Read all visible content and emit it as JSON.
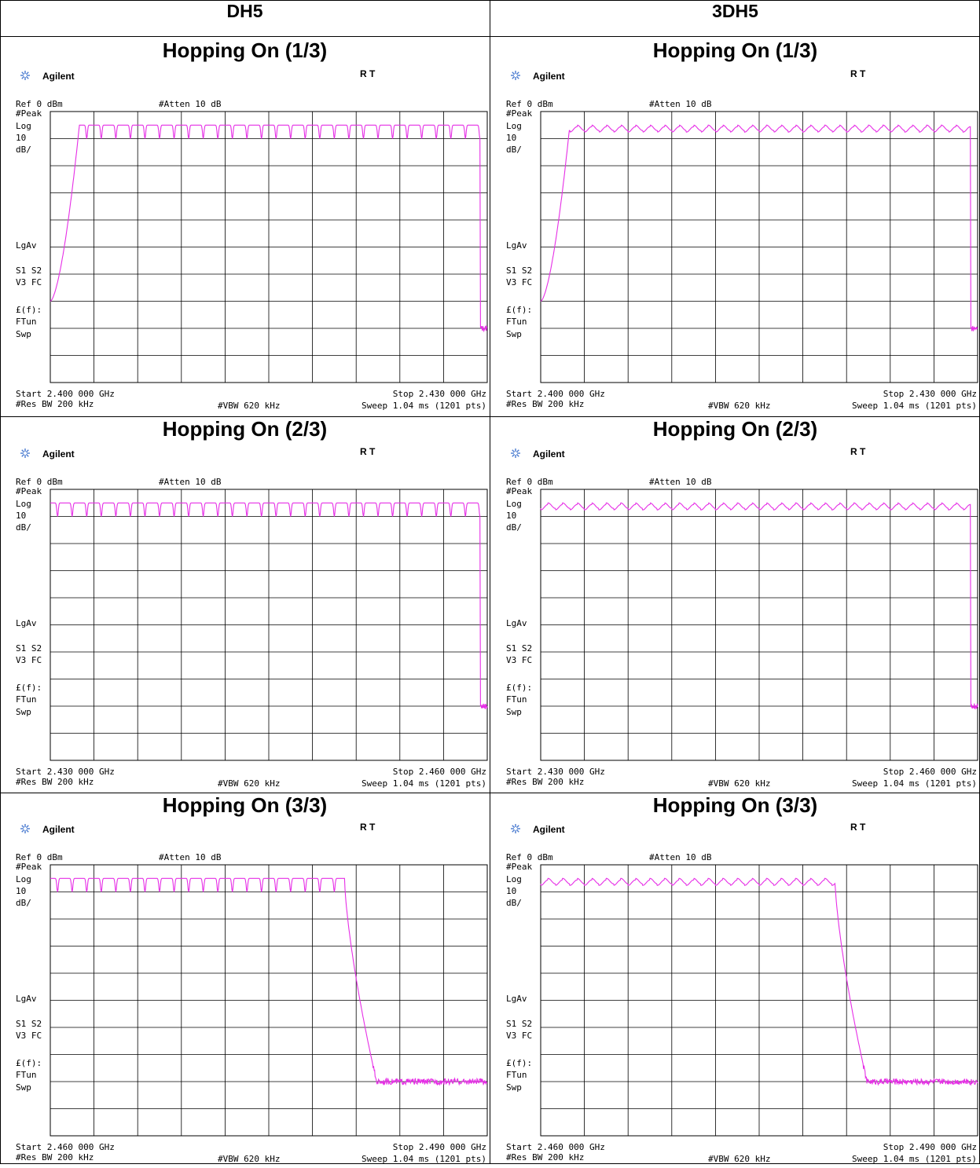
{
  "table": {
    "columns": [
      "DH5",
      "3DH5"
    ],
    "row_titles": [
      "Hopping On (1/3)",
      "Hopping On (2/3)",
      "Hopping On (3/3)"
    ]
  },
  "instrument": {
    "brand": "Agilent",
    "status": "R  T",
    "ref": "Ref 0 dBm",
    "atten": "#Atten 10 dB",
    "peak": "#Peak",
    "log": "Log",
    "scale_num": "10",
    "scale_unit": "dB/",
    "lgav": "LgAv",
    "s1s2": "S1  S2",
    "v3fc": "V3  FC",
    "ef": "£(f):",
    "ftun": "FTun",
    "swp": "Swp",
    "res_bw": "#Res BW 200 kHz",
    "vbw": "#VBW 620 kHz",
    "sweep": "Sweep 1.04 ms (1201 pts)"
  },
  "colors": {
    "trace": "#e62ee6",
    "grid": "#000000",
    "background": "#ffffff"
  },
  "chart_data": [
    {
      "type": "line",
      "column": "DH5",
      "title": "Hopping On (1/3)",
      "start": "Start 2.400 000 GHz",
      "stop": "Stop 2.430 000 GHz",
      "x_range_ghz": [
        2.4,
        2.43
      ],
      "ylim_dbm": [
        -100,
        0
      ],
      "channels_mhz": [
        2402,
        2403,
        2404,
        2405,
        2406,
        2407,
        2408,
        2409,
        2410,
        2411,
        2412,
        2413,
        2414,
        2415,
        2416,
        2417,
        2418,
        2419,
        2420,
        2421,
        2422,
        2423,
        2424,
        2425,
        2426,
        2427,
        2428,
        2429
      ],
      "peak_dbm": -5,
      "dip_dbm": -10,
      "noise_dbm": -80,
      "edge": "rising",
      "edge_ghz": 2.4015
    },
    {
      "type": "line",
      "column": "3DH5",
      "title": "Hopping On (1/3)",
      "start": "Start 2.400 000 GHz",
      "stop": "Stop 2.430 000 GHz",
      "x_range_ghz": [
        2.4,
        2.43
      ],
      "ylim_dbm": [
        -100,
        0
      ],
      "channels_mhz": [
        2402,
        2403,
        2404,
        2405,
        2406,
        2407,
        2408,
        2409,
        2410,
        2411,
        2412,
        2413,
        2414,
        2415,
        2416,
        2417,
        2418,
        2419,
        2420,
        2421,
        2422,
        2423,
        2424,
        2425,
        2426,
        2427,
        2428,
        2429
      ],
      "peak_dbm": -5,
      "dip_dbm": -7,
      "noise_dbm": -80,
      "edge": "rising",
      "edge_ghz": 2.4015
    },
    {
      "type": "line",
      "column": "DH5",
      "title": "Hopping On (2/3)",
      "start": "Start 2.430 000 GHz",
      "stop": "Stop 2.460 000 GHz",
      "x_range_ghz": [
        2.43,
        2.46
      ],
      "ylim_dbm": [
        -100,
        0
      ],
      "channels_mhz": [
        2430,
        2431,
        2432,
        2433,
        2434,
        2435,
        2436,
        2437,
        2438,
        2439,
        2440,
        2441,
        2442,
        2443,
        2444,
        2445,
        2446,
        2447,
        2448,
        2449,
        2450,
        2451,
        2452,
        2453,
        2454,
        2455,
        2456,
        2457,
        2458,
        2459
      ],
      "peak_dbm": -5,
      "dip_dbm": -10,
      "noise_dbm": -80,
      "edge": "none",
      "edge_ghz": null
    },
    {
      "type": "line",
      "column": "3DH5",
      "title": "Hopping On (2/3)",
      "start": "Start 2.430 000 GHz",
      "stop": "Stop 2.460 000 GHz",
      "x_range_ghz": [
        2.43,
        2.46
      ],
      "ylim_dbm": [
        -100,
        0
      ],
      "channels_mhz": [
        2430,
        2431,
        2432,
        2433,
        2434,
        2435,
        2436,
        2437,
        2438,
        2439,
        2440,
        2441,
        2442,
        2443,
        2444,
        2445,
        2446,
        2447,
        2448,
        2449,
        2450,
        2451,
        2452,
        2453,
        2454,
        2455,
        2456,
        2457,
        2458,
        2459
      ],
      "peak_dbm": -5,
      "dip_dbm": -7,
      "noise_dbm": -80,
      "edge": "none",
      "edge_ghz": null
    },
    {
      "type": "line",
      "column": "DH5",
      "title": "Hopping On (3/3)",
      "start": "Start 2.460 000 GHz",
      "stop": "Stop 2.490 000 GHz",
      "x_range_ghz": [
        2.46,
        2.49
      ],
      "ylim_dbm": [
        -100,
        0
      ],
      "channels_mhz": [
        2460,
        2461,
        2462,
        2463,
        2464,
        2465,
        2466,
        2467,
        2468,
        2469,
        2470,
        2471,
        2472,
        2473,
        2474,
        2475,
        2476,
        2477,
        2478,
        2479,
        2480
      ],
      "peak_dbm": -5,
      "dip_dbm": -10,
      "noise_dbm": -80,
      "edge": "falling",
      "edge_ghz": 2.4805
    },
    {
      "type": "line",
      "column": "3DH5",
      "title": "Hopping On (3/3)",
      "start": "Start 2.460 000 GHz",
      "stop": "Stop 2.490 000 GHz",
      "x_range_ghz": [
        2.46,
        2.49
      ],
      "ylim_dbm": [
        -100,
        0
      ],
      "channels_mhz": [
        2460,
        2461,
        2462,
        2463,
        2464,
        2465,
        2466,
        2467,
        2468,
        2469,
        2470,
        2471,
        2472,
        2473,
        2474,
        2475,
        2476,
        2477,
        2478,
        2479,
        2480
      ],
      "peak_dbm": -5,
      "dip_dbm": -7,
      "noise_dbm": -80,
      "edge": "falling",
      "edge_ghz": 2.4805
    }
  ]
}
